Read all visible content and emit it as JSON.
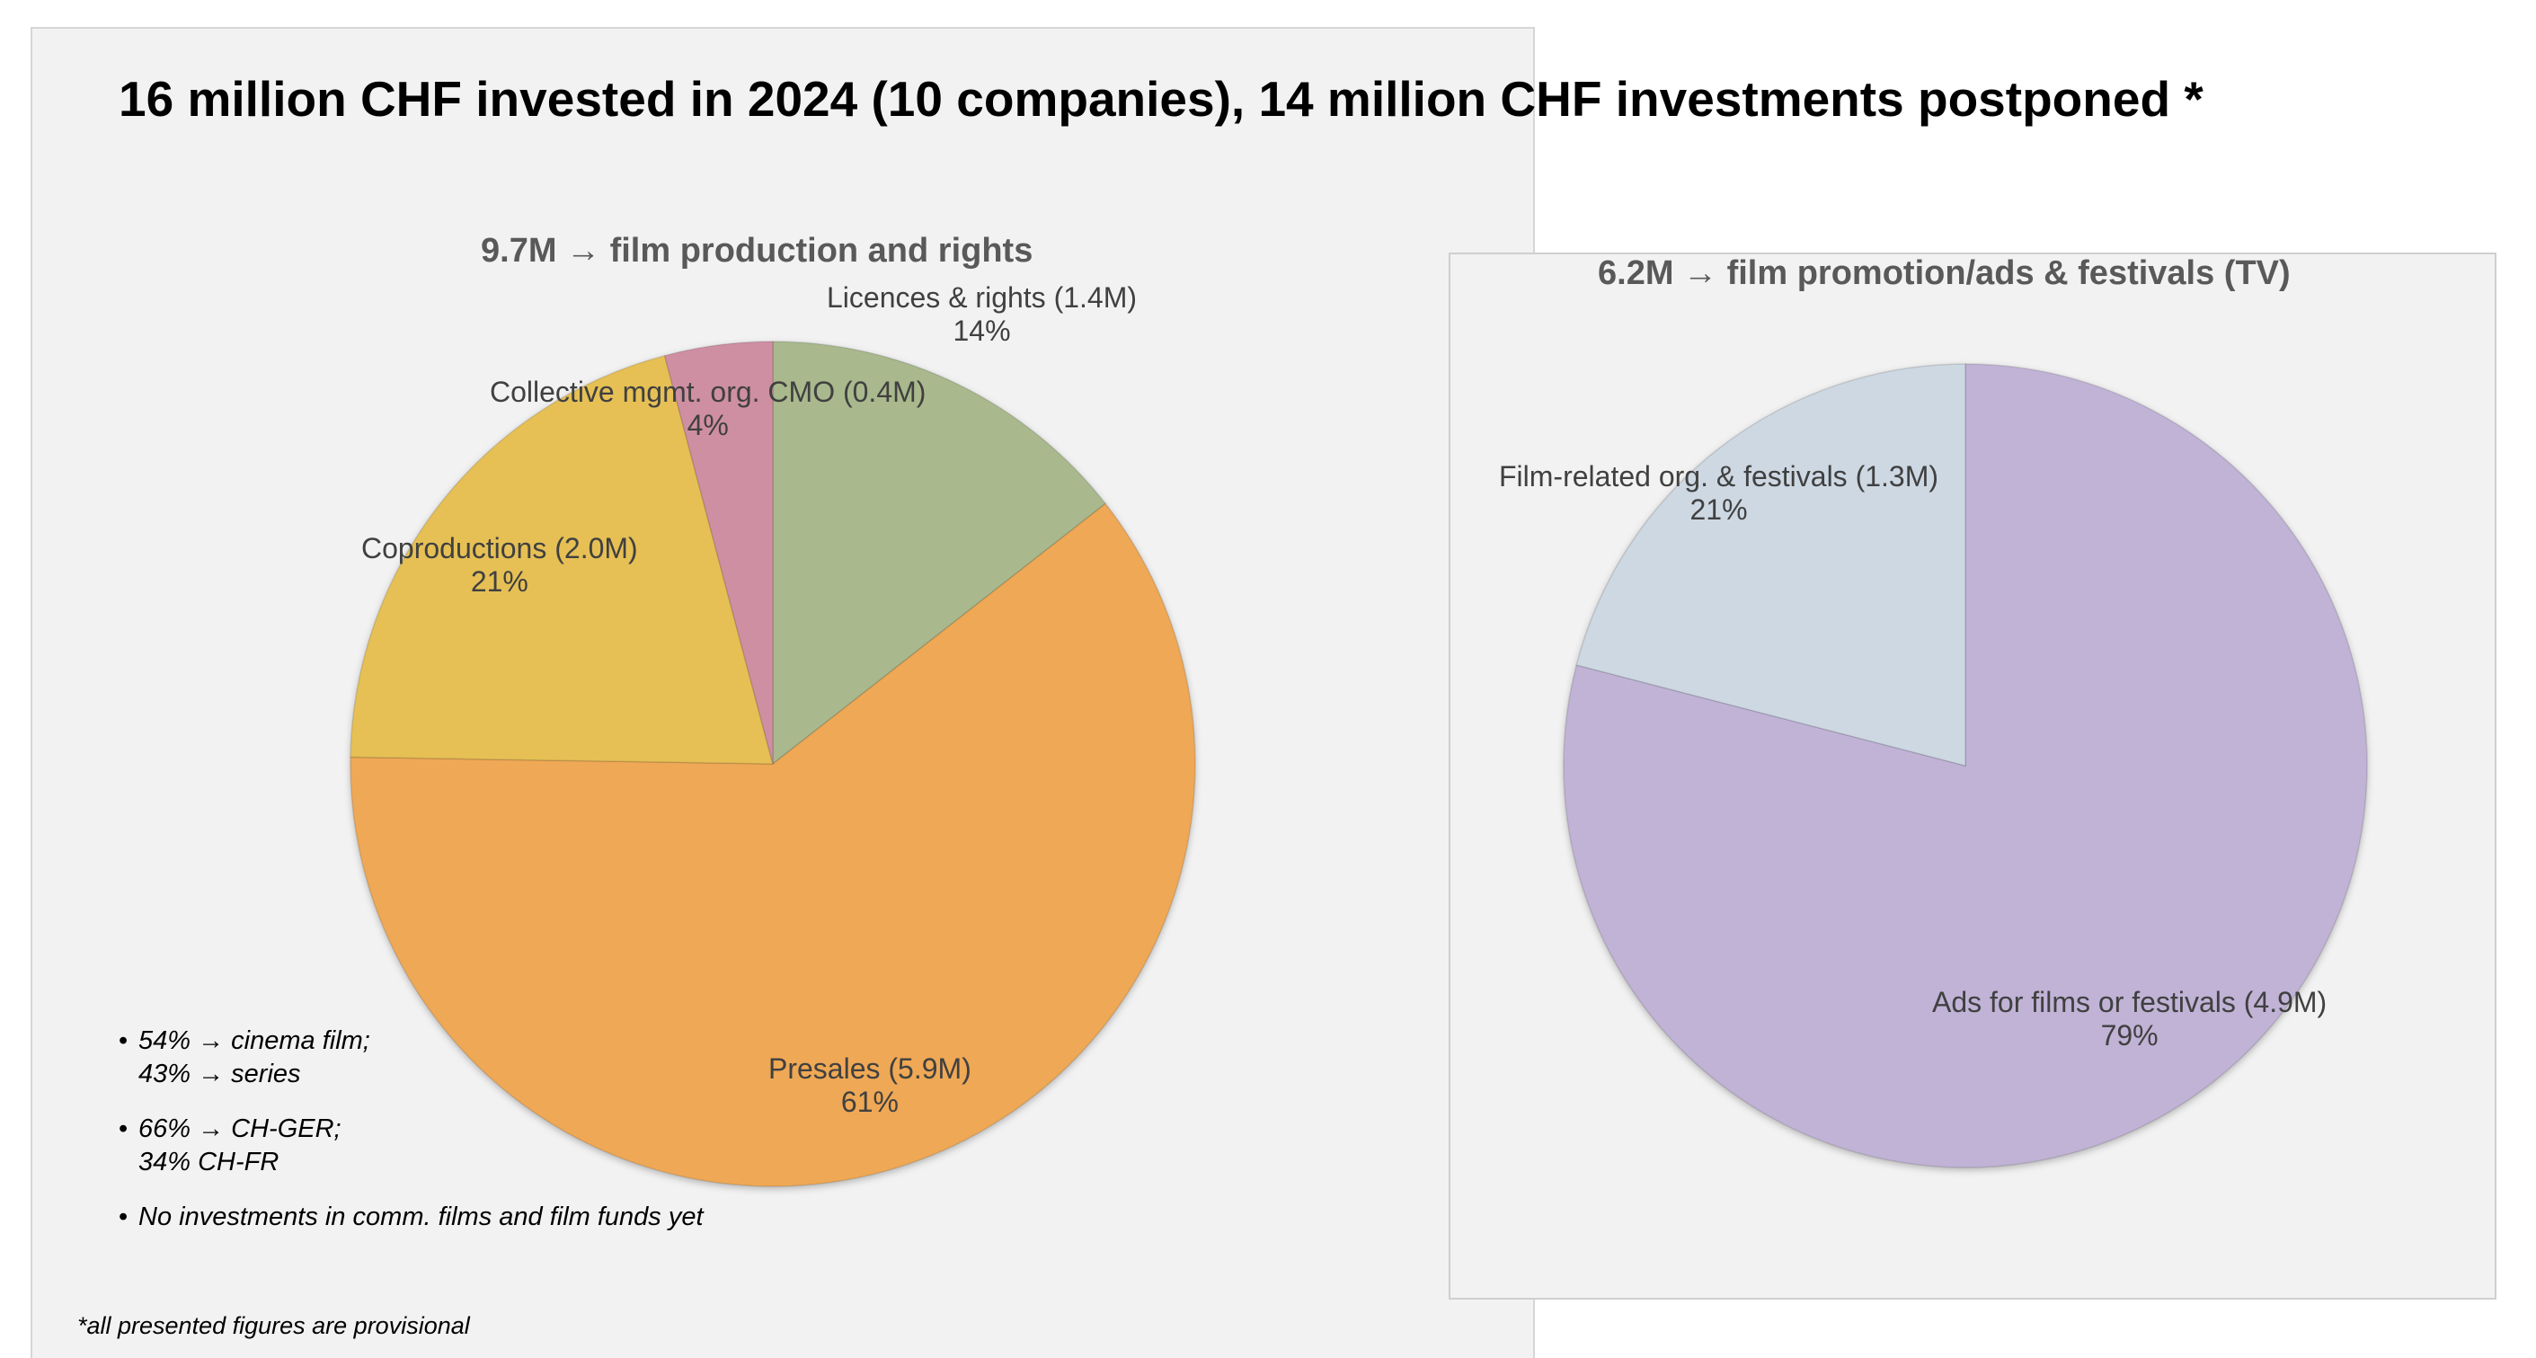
{
  "headline": "16 million CHF invested in 2024 (10 companies), 14 million CHF investments postponed *",
  "chart_data": [
    {
      "type": "pie",
      "title": "9.7M → film production and rights",
      "slices": [
        {
          "name": "Licences & rights (1.4M)",
          "value": 1.4,
          "percent_label": "14%",
          "color": "#a9b98d"
        },
        {
          "name": "Presales (5.9M)",
          "value": 5.9,
          "percent_label": "61%",
          "color": "#efa855"
        },
        {
          "name": "Coproductions (2.0M)",
          "value": 2.0,
          "percent_label": "21%",
          "color": "#e6c055"
        },
        {
          "name": "Collective mgmt. org. CMO (0.4M)",
          "value": 0.4,
          "percent_label": "4%",
          "color": "#cf8fa2"
        }
      ]
    },
    {
      "type": "pie",
      "title": "6.2M → film promotion/ads & festivals (TV)",
      "slices": [
        {
          "name": "Ads for films or festivals (4.9M)",
          "value": 4.9,
          "percent_label": "79%",
          "color": "#c0b3d6"
        },
        {
          "name": "Film-related org. & festivals (1.3M)",
          "value": 1.3,
          "percent_label": "21%",
          "color": "#cdd8e3"
        }
      ]
    }
  ],
  "notes": [
    [
      "54% → cinema film;",
      "43% → series"
    ],
    [
      "66% → CH-GER;",
      "34% CH-FR"
    ],
    [
      "No investments in comm. films and film funds yet"
    ]
  ],
  "footnote": "*all presented figures are provisional"
}
